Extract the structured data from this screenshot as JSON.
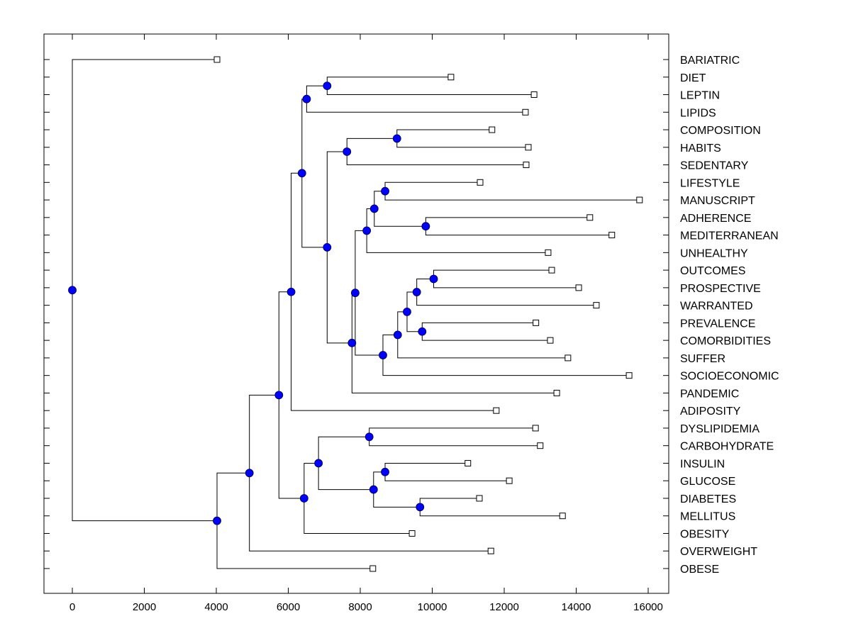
{
  "chart_data": {
    "type": "dendrogram",
    "title": "",
    "xlabel": "",
    "ylabel": "",
    "xlim": [
      -800,
      16600
    ],
    "xticks": [
      0,
      2000,
      4000,
      6000,
      8000,
      10000,
      12000,
      14000,
      16000
    ],
    "xtick_labels": [
      "0",
      "2000",
      "4000",
      "6000",
      "8000",
      "10000",
      "12000",
      "14000",
      "16000"
    ],
    "colors": {
      "node_fill": "#0000ff",
      "line": "#000000",
      "leaf_fill": "#ffffff"
    },
    "leaves": [
      {
        "label": "BARIATRIC",
        "value": 4020
      },
      {
        "label": "DIET",
        "value": 10520
      },
      {
        "label": "LEPTIN",
        "value": 12830
      },
      {
        "label": "LIPIDS",
        "value": 12590
      },
      {
        "label": "COMPOSITION",
        "value": 11660
      },
      {
        "label": "HABITS",
        "value": 12670
      },
      {
        "label": "SEDENTARY",
        "value": 12610
      },
      {
        "label": "LIFESTYLE",
        "value": 11330
      },
      {
        "label": "MANUSCRIPT",
        "value": 15760
      },
      {
        "label": "ADHERENCE",
        "value": 14380
      },
      {
        "label": "MEDITERRANEAN",
        "value": 14990
      },
      {
        "label": "UNHEALTHY",
        "value": 13220
      },
      {
        "label": "OUTCOMES",
        "value": 13320
      },
      {
        "label": "PROSPECTIVE",
        "value": 14070
      },
      {
        "label": "WARRANTED",
        "value": 14560
      },
      {
        "label": "PREVALENCE",
        "value": 12880
      },
      {
        "label": "COMORBIDITIES",
        "value": 13280
      },
      {
        "label": "SUFFER",
        "value": 13770
      },
      {
        "label": "SOCIOECONOMIC",
        "value": 15470
      },
      {
        "label": "PANDEMIC",
        "value": 13460
      },
      {
        "label": "ADIPOSITY",
        "value": 11780
      },
      {
        "label": "DYSLIPIDEMIA",
        "value": 12870
      },
      {
        "label": "CARBOHYDRATE",
        "value": 13000
      },
      {
        "label": "INSULIN",
        "value": 10990
      },
      {
        "label": "GLUCOSE",
        "value": 12140
      },
      {
        "label": "DIABETES",
        "value": 11310
      },
      {
        "label": "MELLITUS",
        "value": 13620
      },
      {
        "label": "OBESITY",
        "value": 9440
      },
      {
        "label": "OVERWEIGHT",
        "value": 11630
      },
      {
        "label": "OBESE",
        "value": 8350
      }
    ],
    "nodes": [
      {
        "id": "n_diet_leptin",
        "value": 7080,
        "children": [
          "L1",
          "L2"
        ]
      },
      {
        "id": "n_dl_lipids",
        "value": 6510,
        "children": [
          "n_diet_leptin",
          "L3"
        ]
      },
      {
        "id": "n_comp_habits",
        "value": 9020,
        "children": [
          "L4",
          "L5"
        ]
      },
      {
        "id": "n_ch_sed",
        "value": 7630,
        "children": [
          "n_comp_habits",
          "L6"
        ]
      },
      {
        "id": "n_life_manu",
        "value": 8690,
        "children": [
          "L7",
          "L8"
        ]
      },
      {
        "id": "n_adh_med",
        "value": 9820,
        "children": [
          "L9",
          "L10"
        ]
      },
      {
        "id": "n_lm_am",
        "value": 8390,
        "children": [
          "n_life_manu",
          "n_adh_med"
        ]
      },
      {
        "id": "n_lmam_unh",
        "value": 8180,
        "children": [
          "n_lm_am",
          "L11"
        ]
      },
      {
        "id": "n_out_pros",
        "value": 10040,
        "children": [
          "L12",
          "L13"
        ]
      },
      {
        "id": "n_op_war",
        "value": 9570,
        "children": [
          "n_out_pros",
          "L14"
        ]
      },
      {
        "id": "n_prev_comor",
        "value": 9720,
        "children": [
          "L15",
          "L16"
        ]
      },
      {
        "id": "n_opw_pc",
        "value": 9300,
        "children": [
          "n_op_war",
          "n_prev_comor"
        ]
      },
      {
        "id": "n_opwpc_suf",
        "value": 9040,
        "children": [
          "n_opw_pc",
          "L17"
        ]
      },
      {
        "id": "n_suf_socio",
        "value": 8630,
        "children": [
          "n_opwpc_suf",
          "L18"
        ]
      },
      {
        "id": "n_unh_grp",
        "value": 7860,
        "children": [
          "n_lmam_unh",
          "n_suf_socio"
        ]
      },
      {
        "id": "n_grp_pand",
        "value": 7770,
        "children": [
          "n_unh_grp",
          "L19"
        ]
      },
      {
        "id": "n_sed_pand",
        "value": 7080,
        "children": [
          "n_ch_sed",
          "n_grp_pand"
        ]
      },
      {
        "id": "n_upper",
        "value": 6380,
        "children": [
          "n_dl_lipids",
          "n_sed_pand"
        ]
      },
      {
        "id": "n_upper_adip",
        "value": 6080,
        "children": [
          "n_upper",
          "L20"
        ]
      },
      {
        "id": "n_dys_carb",
        "value": 8250,
        "children": [
          "L21",
          "L22"
        ]
      },
      {
        "id": "n_ins_glu",
        "value": 8690,
        "children": [
          "L23",
          "L24"
        ]
      },
      {
        "id": "n_dia_mel",
        "value": 9660,
        "children": [
          "L25",
          "L26"
        ]
      },
      {
        "id": "n_ig_dm",
        "value": 8370,
        "children": [
          "n_ins_glu",
          "n_dia_mel"
        ]
      },
      {
        "id": "n_dc_igdm",
        "value": 6840,
        "children": [
          "n_dys_carb",
          "n_ig_dm"
        ]
      },
      {
        "id": "n_lower_obesity",
        "value": 6440,
        "children": [
          "n_dc_igdm",
          "L27"
        ]
      },
      {
        "id": "n_mid",
        "value": 5740,
        "children": [
          "n_upper_adip",
          "n_lower_obesity"
        ]
      },
      {
        "id": "n_mid_over",
        "value": 4920,
        "children": [
          "n_mid",
          "L28"
        ]
      },
      {
        "id": "n_mid_obese",
        "value": 4020,
        "children": [
          "n_mid_over",
          "L29"
        ]
      },
      {
        "id": "root",
        "value": 0,
        "children": [
          "L0",
          "n_mid_obese"
        ]
      }
    ]
  }
}
